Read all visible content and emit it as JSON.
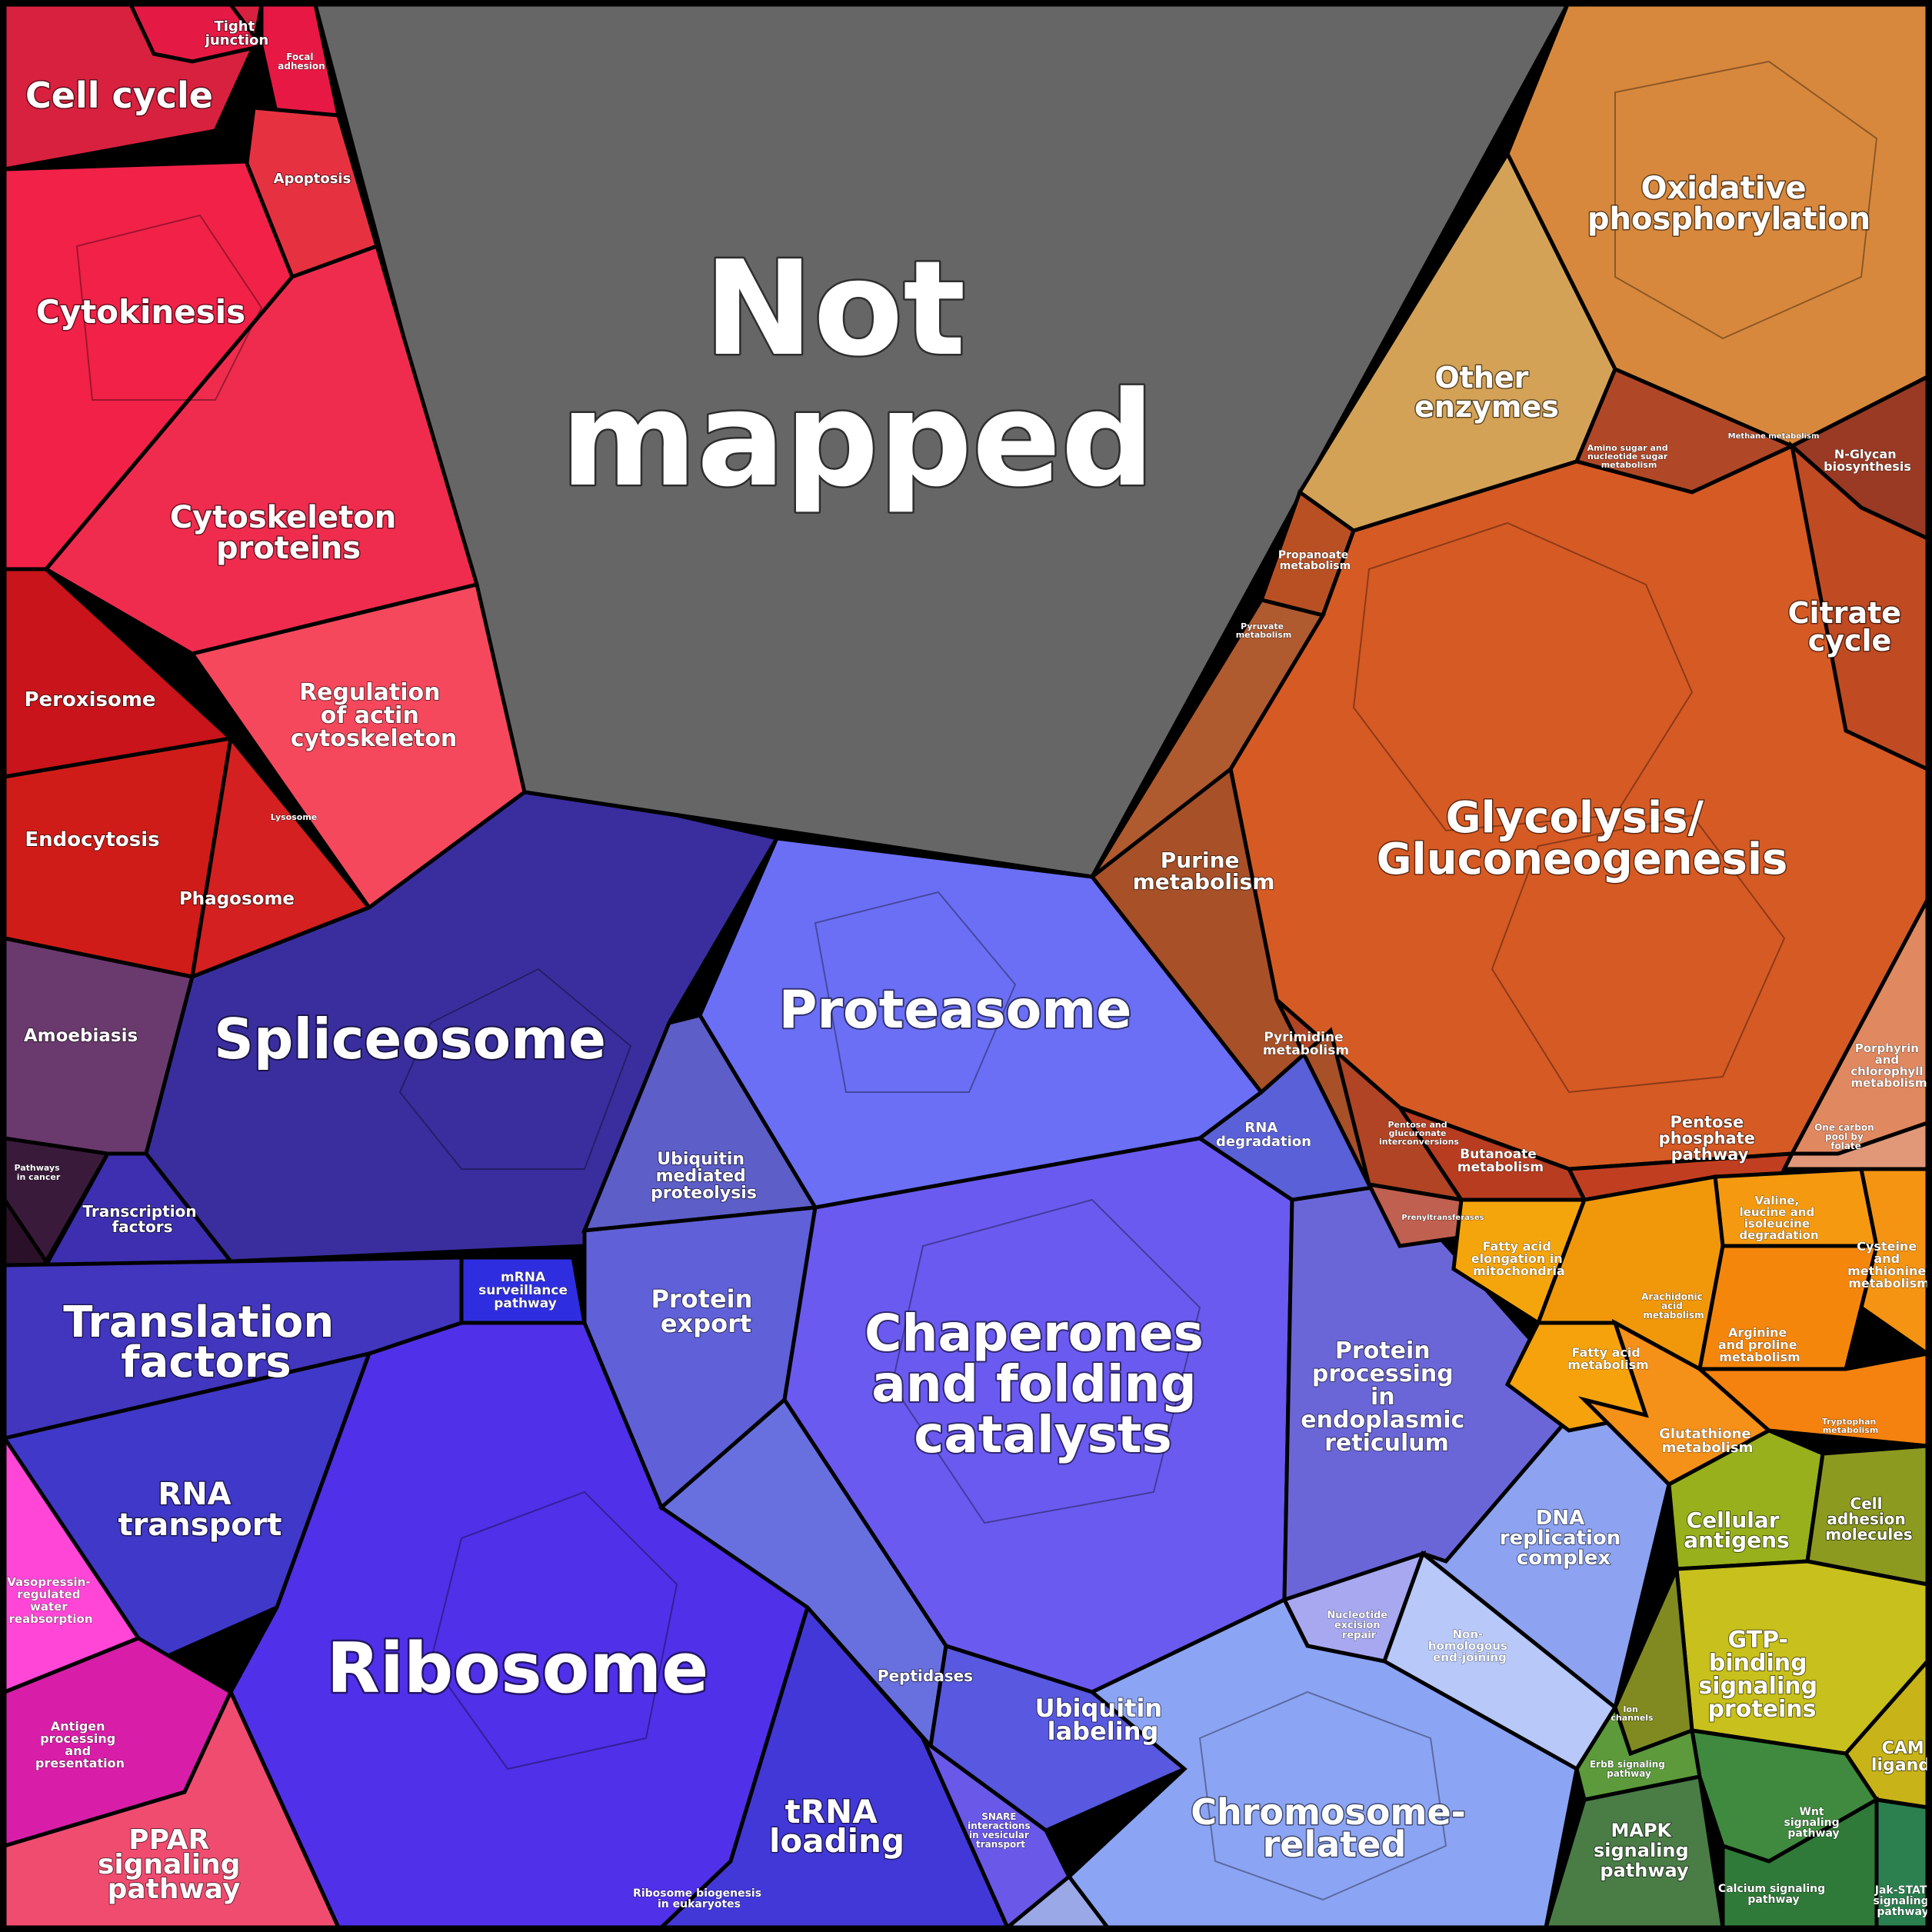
{
  "colors": {
    "not_mapped": "#666666",
    "cellular": "#f0284b",
    "cellular_dark": "#c8141e",
    "organismal": "#6a3a6e",
    "genetic_info": "#4a36c8",
    "protein_fate": "#6b6bf0",
    "replication_repair": "#8aa0f0",
    "metabolism": "#d4622a",
    "energy": "#d8883c",
    "aa_metabolism": "#f5940f",
    "signaling": "#9aaa1c",
    "env_info": "#3f8a3f",
    "disease_pink": "#e02aa8",
    "ppar": "#f04c70"
  },
  "labels": {
    "not_mapped": [
      "Not",
      "mapped"
    ],
    "cell_cycle": "Cell cycle",
    "tight_junction": [
      "Tight",
      "junction"
    ],
    "focal_adhesion": [
      "Focal",
      "adhesion"
    ],
    "apoptosis": "Apoptosis",
    "cytokinesis": "Cytokinesis",
    "cytoskeleton_proteins": [
      "Cytoskeleton",
      "proteins"
    ],
    "regulation_actin": [
      "Regulation",
      "of actin",
      "cytoskeleton"
    ],
    "peroxisome": "Peroxisome",
    "endocytosis": "Endocytosis",
    "lysosome": "Lysosome",
    "phagosome": "Phagosome",
    "amoebiasis": "Amoebiasis",
    "pathways_cancer": [
      "Pathways",
      "in cancer"
    ],
    "spliceosome": "Spliceosome",
    "transcription_factors": [
      "Transcription",
      "factors"
    ],
    "translation_factors": [
      "Translation",
      "factors"
    ],
    "mrna_surveillance": [
      "mRNA",
      "surveillance",
      "pathway"
    ],
    "rna_transport": [
      "RNA",
      "transport"
    ],
    "ribosome": "Ribosome",
    "trna_loading": [
      "tRNA",
      "loading"
    ],
    "ribosome_biogenesis": [
      "Ribosome biogenesis",
      "in eukaryotes"
    ],
    "vasopressin": [
      "Vasopressin-",
      "regulated",
      "water",
      "reabsorption"
    ],
    "antigen_processing": [
      "Antigen",
      "processing",
      "and",
      "presentation"
    ],
    "ppar": [
      "PPAR",
      "signaling",
      "pathway"
    ],
    "proteasome": "Proteasome",
    "ubiquitin_proteolysis": [
      "Ubiquitin",
      "mediated",
      "proteolysis"
    ],
    "protein_export": [
      "Protein",
      "export"
    ],
    "chaperones": [
      "Chaperones",
      "and folding",
      "catalysts"
    ],
    "protein_processing_er": [
      "Protein",
      "processing",
      "in",
      "endoplasmic",
      "reticulum"
    ],
    "rna_degradation": [
      "RNA",
      "degradation"
    ],
    "peptidases": "Peptidases",
    "ubiquitin_labeling": [
      "Ubiquitin",
      "labeling"
    ],
    "snare": [
      "SNARE",
      "interactions",
      "in vesicular",
      "transport"
    ],
    "dna_replication": [
      "DNA",
      "replication",
      "complex"
    ],
    "nucleotide_excision": [
      "Nucleotide",
      "excision",
      "repair"
    ],
    "nhej": [
      "Non-",
      "homologous",
      "end-joining"
    ],
    "chromosome_related": [
      "Chromosome-",
      "related"
    ],
    "oxidative_phosphorylation": [
      "Oxidative",
      "phosphorylation"
    ],
    "other_enzymes": [
      "Other",
      "enzymes"
    ],
    "nglycan": [
      "N-Glycan",
      "biosynthesis"
    ],
    "amino_sugar": [
      "Amino sugar and",
      "nucleotide sugar",
      "metabolism"
    ],
    "methane": "Methane metabolism",
    "propanoate": [
      "Propanoate",
      "metabolism"
    ],
    "pyruvate": [
      "Pyruvate",
      "metabolism"
    ],
    "citrate_cycle": [
      "Citrate",
      "cycle"
    ],
    "glycolysis": [
      "Glycolysis/",
      "Gluconeogenesis"
    ],
    "purine": [
      "Purine",
      "metabolism"
    ],
    "pyrimidine": [
      "Pyrimidine",
      "metabolism"
    ],
    "pentose_glucuronate": [
      "Pentose and",
      "glucuronate",
      "interconversions"
    ],
    "butanoate": [
      "Butanoate",
      "metabolism"
    ],
    "pentose_phosphate": [
      "Pentose",
      "phosphate",
      "pathway"
    ],
    "porphyrin": [
      "Porphyrin",
      "and",
      "chlorophyll",
      "metabolism"
    ],
    "one_carbon": [
      "One carbon",
      "pool by",
      "folate"
    ],
    "prenyltransferases": "Prenyltransferases",
    "valine": [
      "Valine,",
      "leucine and",
      "isoleucine",
      "degradation"
    ],
    "fatty_acid_elongation": [
      "Fatty acid",
      "elongation in",
      "mitochondria"
    ],
    "cysteine": [
      "Cysteine",
      "and",
      "methionine",
      "metabolism"
    ],
    "arachidonic": [
      "Arachidonic",
      "acid",
      "metabolism"
    ],
    "arginine": [
      "Arginine",
      "and proline",
      "metabolism"
    ],
    "fatty_acid_metabolism": [
      "Fatty acid",
      "metabolism"
    ],
    "glutathione": [
      "Glutathione",
      "metabolism"
    ],
    "tryptophan": [
      "Tryptophan",
      "metabolism"
    ],
    "cellular_antigens": [
      "Cellular",
      "antigens"
    ],
    "cell_adhesion": [
      "Cell",
      "adhesion",
      "molecules"
    ],
    "gtp_binding": [
      "GTP-",
      "binding",
      "signaling",
      "proteins"
    ],
    "ion_channels": [
      "Ion",
      "channels"
    ],
    "cam_ligands": [
      "CAM",
      "ligands"
    ],
    "erbb": [
      "ErbB signaling",
      "pathway"
    ],
    "mapk": [
      "MAPK",
      "signaling",
      "pathway"
    ],
    "wnt": [
      "Wnt",
      "signaling",
      "pathway"
    ],
    "calcium": [
      "Calcium signaling",
      "pathway"
    ],
    "jak_stat": [
      "Jak-STAT",
      "signaling",
      "pathway"
    ]
  }
}
